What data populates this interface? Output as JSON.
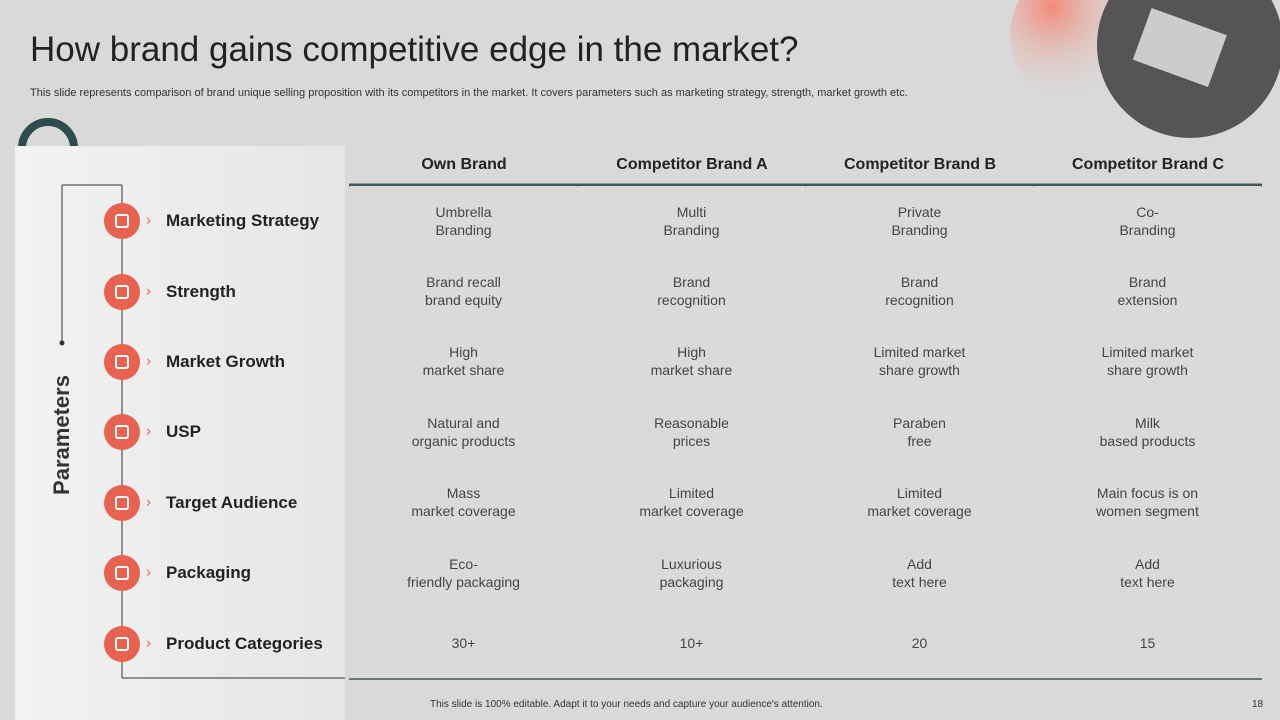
{
  "header": {
    "title": "How brand gains competitive edge in the market?",
    "subtitle": "This slide represents comparison of brand unique selling proposition with its competitors in the market. It covers parameters such as marketing strategy, strength, market growth etc."
  },
  "sidebar": {
    "label": "Parameters"
  },
  "table": {
    "columns": [
      "Own Brand",
      "Competitor Brand A",
      "Competitor Brand B",
      "Competitor Brand C"
    ],
    "rows": [
      {
        "label": "Marketing Strategy",
        "cells": [
          "Umbrella\nBranding",
          "Multi\nBranding",
          "Private\nBranding",
          "Co-\nBranding"
        ]
      },
      {
        "label": "Strength",
        "cells": [
          "Brand recall\nbrand equity",
          "Brand\nrecognition",
          "Brand\nrecognition",
          "Brand\nextension"
        ]
      },
      {
        "label": "Market Growth",
        "cells": [
          "High\nmarket share",
          "High\nmarket share",
          "Limited market\nshare growth",
          "Limited market\nshare growth"
        ]
      },
      {
        "label": "USP",
        "cells": [
          "Natural and\norganic products",
          "Reasonable\nprices",
          "Paraben\nfree",
          "Milk\nbased products"
        ]
      },
      {
        "label": "Target Audience",
        "cells": [
          "Mass\nmarket coverage",
          "Limited\nmarket coverage",
          "Limited\nmarket coverage",
          "Main focus is on\nwomen segment"
        ]
      },
      {
        "label": "Packaging",
        "cells": [
          "Eco-\nfriendly packaging",
          "Luxurious\npackaging",
          "Add\ntext here",
          "Add\ntext here"
        ]
      },
      {
        "label": "Product Categories",
        "cells": [
          "30+",
          "10+",
          "20",
          "15"
        ]
      }
    ]
  },
  "footer": {
    "note": "This slide is 100% editable.  Adapt it to your needs and capture your audience's attention.",
    "page": "18"
  }
}
